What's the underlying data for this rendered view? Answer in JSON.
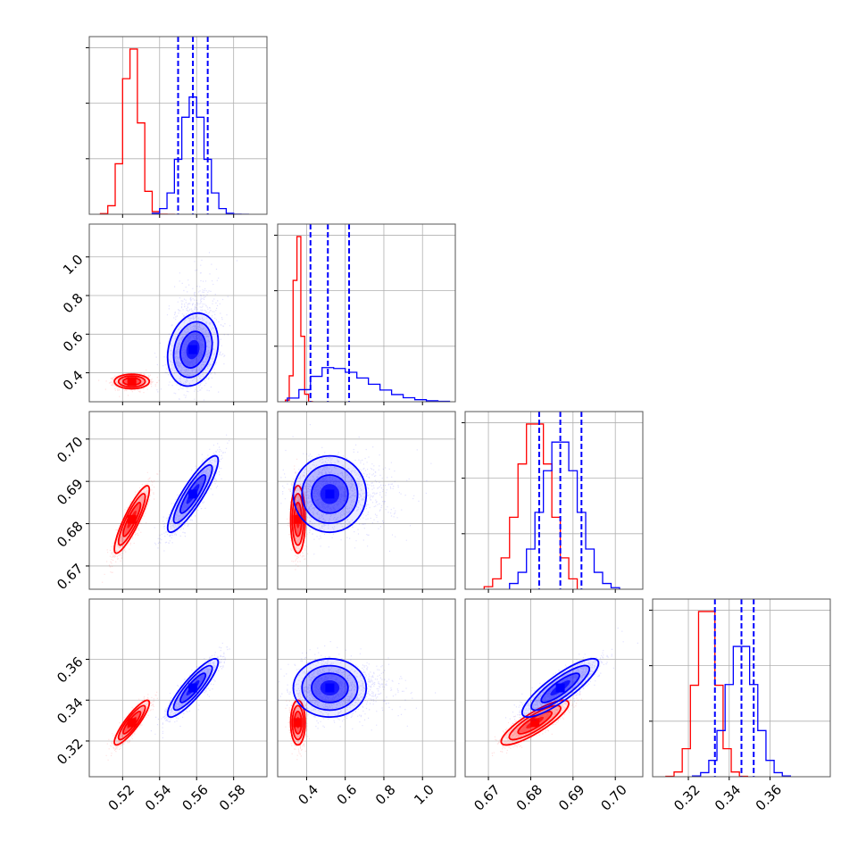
{
  "colors": {
    "series_a": "#ff0000",
    "series_b": "#0000ff",
    "grid": "#b0b0b0",
    "frame": "#555555"
  },
  "chart_data": {
    "type": "corner",
    "grid": true,
    "params": [
      {
        "lim": [
          0.502,
          0.598
        ],
        "ticks": [
          0.52,
          0.54,
          0.56,
          0.58
        ],
        "labels": [
          "0.52",
          "0.54",
          "0.56",
          "0.58"
        ]
      },
      {
        "lim": [
          0.25,
          1.17
        ],
        "ticks": [
          0.4,
          0.6,
          0.8,
          1.0
        ],
        "labels": [
          "0.4",
          "0.6",
          "0.8",
          "1.0"
        ]
      },
      {
        "lim": [
          0.6645,
          0.7065
        ],
        "ticks": [
          0.67,
          0.68,
          0.69,
          0.7
        ],
        "labels": [
          "0.67",
          "0.68",
          "0.69",
          "0.70"
        ]
      },
      {
        "lim": [
          0.3025,
          0.3895
        ],
        "ticks": [
          0.32,
          0.34,
          0.36
        ],
        "labels": [
          "0.32",
          "0.34",
          "0.36"
        ]
      }
    ],
    "series": [
      {
        "name": "",
        "color": "#ff0000",
        "mean": [
          0.525,
          0.355,
          0.681,
          0.329
        ],
        "sd": [
          0.0045,
          0.018,
          0.0038,
          0.0052
        ],
        "corr": [
          [
            0,
            1,
            0.0
          ],
          [
            0,
            2,
            0.88
          ],
          [
            0,
            3,
            0.88
          ],
          [
            1,
            2,
            0.0
          ],
          [
            1,
            3,
            0.0
          ],
          [
            2,
            3,
            0.85
          ]
        ],
        "hist": [
          [
            0.508,
            0.512,
            0.516,
            0.52,
            0.524,
            0.528,
            0.532,
            0.536,
            0.54,
            0.544,
            0.548
          ],
          [
            0.29,
            0.31,
            0.33,
            0.35,
            0.37,
            0.39,
            0.41,
            0.43
          ],
          [
            0.669,
            0.671,
            0.673,
            0.675,
            0.677,
            0.679,
            0.681,
            0.683,
            0.685,
            0.687,
            0.689,
            0.691
          ],
          [
            0.309,
            0.313,
            0.317,
            0.321,
            0.325,
            0.329,
            0.333,
            0.337,
            0.341,
            0.345,
            0.349
          ]
        ]
      },
      {
        "name": "",
        "color": "#0000ff",
        "mean": [
          0.558,
          0.52,
          0.687,
          0.346
        ],
        "sd": [
          0.0065,
          0.09,
          0.0043,
          0.0068
        ],
        "corr": [
          [
            0,
            1,
            0.2
          ],
          [
            0,
            2,
            0.88
          ],
          [
            0,
            3,
            0.88
          ],
          [
            1,
            2,
            0.0
          ],
          [
            1,
            3,
            0.0
          ],
          [
            2,
            3,
            0.85
          ]
        ],
        "quantiles": [
          [
            0.55,
            0.558,
            0.566
          ],
          [
            0.42,
            0.51,
            0.62
          ],
          [
            0.682,
            0.687,
            0.692
          ],
          [
            0.333,
            0.346,
            0.352
          ]
        ],
        "hist": [
          [
            0.536,
            0.54,
            0.544,
            0.548,
            0.552,
            0.556,
            0.56,
            0.564,
            0.568,
            0.572,
            0.576,
            0.58,
            0.584,
            0.588
          ],
          [
            0.3,
            0.36,
            0.42,
            0.48,
            0.54,
            0.6,
            0.66,
            0.72,
            0.78,
            0.84,
            0.9,
            0.96,
            1.02,
            1.08,
            1.14
          ],
          [
            0.675,
            0.677,
            0.679,
            0.681,
            0.683,
            0.685,
            0.687,
            0.689,
            0.691,
            0.693,
            0.695,
            0.697,
            0.699,
            0.701
          ],
          [
            0.322,
            0.326,
            0.33,
            0.334,
            0.338,
            0.342,
            0.346,
            0.35,
            0.354,
            0.358,
            0.362,
            0.366,
            0.37
          ]
        ]
      }
    ]
  }
}
